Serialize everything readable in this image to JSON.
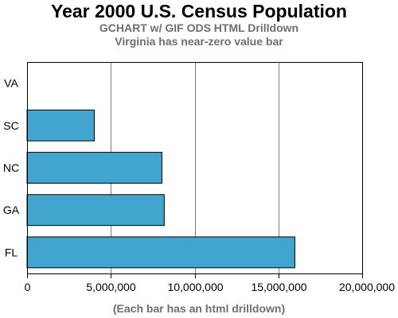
{
  "chart_data": {
    "type": "bar",
    "orientation": "horizontal",
    "title": "Year 2000 U.S. Census Population",
    "subtitles": [
      "GCHART w/ GIF ODS HTML Drilldown",
      "Virginia has near-zero value bar"
    ],
    "categories": [
      "VA",
      "SC",
      "NC",
      "GA",
      "FL"
    ],
    "values": [
      1,
      4012012,
      8049313,
      8186453,
      15982378
    ],
    "xlim": [
      0,
      20000000
    ],
    "xticks": [
      0,
      5000000,
      10000000,
      15000000,
      20000000
    ],
    "xtick_labels": [
      "0",
      "5,000,000",
      "10,000,000",
      "15,000,000",
      "20,000,000"
    ],
    "xlabel": "(Each bar has an html drilldown)",
    "grid": "vertical",
    "colors": {
      "bar": "#42a5cf",
      "bar_outline": "#000000",
      "grid": "#7f7f7f",
      "title": "#000000",
      "subtitle": "#6e6e6e"
    }
  }
}
